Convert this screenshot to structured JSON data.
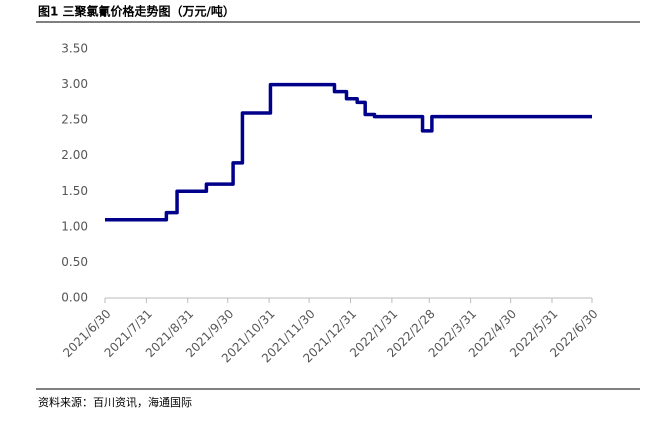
{
  "chart_data": {
    "type": "line",
    "title": "图1  三聚氯氰价格走势图（万元/吨）",
    "source": "资料来源：百川资讯，海通国际",
    "x": [
      "2021/6/30",
      "2021/8/15",
      "2021/8/15",
      "2021/8/23",
      "2021/8/23",
      "2021/9/14",
      "2021/9/14",
      "2021/10/4",
      "2021/10/4",
      "2021/10/11",
      "2021/10/11",
      "2021/11/1",
      "2021/11/1",
      "2021/12/19",
      "2021/12/19",
      "2021/12/28",
      "2021/12/28",
      "2022/1/5",
      "2022/1/5",
      "2022/1/11",
      "2022/1/11",
      "2022/1/18",
      "2022/1/18",
      "2022/2/23",
      "2022/2/23",
      "2022/3/2",
      "2022/3/2",
      "2022/6/30"
    ],
    "series": [
      {
        "color": "#00008b",
        "values": [
          1.1,
          1.1,
          1.2,
          1.2,
          1.5,
          1.5,
          1.6,
          1.6,
          1.9,
          1.9,
          2.6,
          2.6,
          3.0,
          3.0,
          2.9,
          2.9,
          2.8,
          2.8,
          2.75,
          2.75,
          2.58,
          2.58,
          2.55,
          2.55,
          2.35,
          2.35,
          2.55,
          2.55
        ]
      }
    ],
    "xlim": [
      "2021/6/30",
      "2022/6/30"
    ],
    "xticks": [
      "2021/6/30",
      "2021/7/31",
      "2021/8/31",
      "2021/9/30",
      "2021/10/31",
      "2021/11/30",
      "2021/12/31",
      "2022/1/31",
      "2022/2/28",
      "2022/3/31",
      "2022/4/30",
      "2022/5/31",
      "2022/6/30"
    ],
    "ylim": [
      0,
      3.5
    ],
    "yticks": [
      {
        "value": 0,
        "label": "0.00"
      },
      {
        "value": 0.5,
        "label": "0.50"
      },
      {
        "value": 1,
        "label": "1.00"
      },
      {
        "value": 1.5,
        "label": "1.50"
      },
      {
        "value": 2,
        "label": "2.00"
      },
      {
        "value": 2.5,
        "label": "2.50"
      },
      {
        "value": 3,
        "label": "3.00"
      },
      {
        "value": 3.5,
        "label": "3.50"
      }
    ],
    "grid": false
  }
}
